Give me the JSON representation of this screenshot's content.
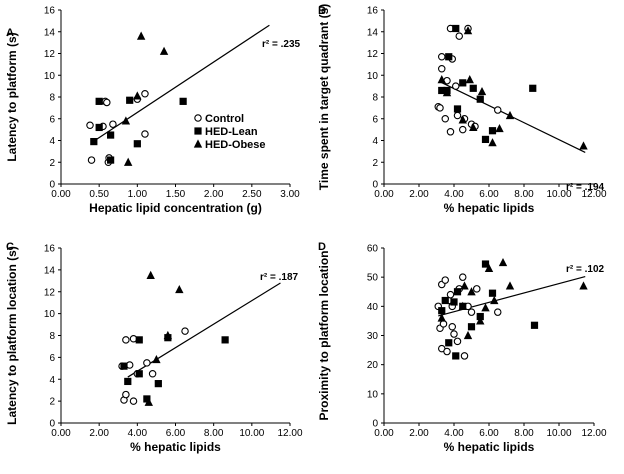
{
  "legend": [
    {
      "label": "Control",
      "marker": "circle"
    },
    {
      "label": "HED-Lean",
      "marker": "square"
    },
    {
      "label": "HED-Obese",
      "marker": "triangle"
    }
  ],
  "chart_data": [
    {
      "panel": "A",
      "type": "scatter",
      "xlabel": "Hepatic lipid concentration (g)",
      "ylabel": "Latency to platform (s)",
      "xlim": [
        0,
        3.0
      ],
      "ylim": [
        0,
        16
      ],
      "xticks": [
        "0.00",
        "0.50",
        "1.00",
        "1.50",
        "2.00",
        "2.50",
        "3.00"
      ],
      "yticks": [
        "0",
        "2",
        "4",
        "6",
        "8",
        "10",
        "12",
        "14",
        "16"
      ],
      "r2_label": "r² = .235",
      "fit": {
        "x": [
          0.4,
          2.73
        ],
        "y": [
          3.8,
          14.6
        ]
      },
      "series": [
        {
          "name": "Control",
          "marker": "circle",
          "points": [
            [
              0.38,
              5.4
            ],
            [
              0.4,
              2.2
            ],
            [
              0.55,
              5.3
            ],
            [
              0.58,
              7.6
            ],
            [
              0.6,
              7.5
            ],
            [
              0.62,
              2.0
            ],
            [
              0.63,
              2.4
            ],
            [
              0.68,
              5.5
            ],
            [
              1.0,
              7.8
            ],
            [
              1.1,
              8.3
            ],
            [
              1.1,
              4.6
            ]
          ]
        },
        {
          "name": "HED-Lean",
          "marker": "square",
          "points": [
            [
              0.43,
              3.9
            ],
            [
              0.5,
              7.6
            ],
            [
              0.5,
              5.2
            ],
            [
              0.65,
              4.5
            ],
            [
              0.65,
              2.2
            ],
            [
              0.9,
              7.7
            ],
            [
              1.0,
              3.7
            ],
            [
              1.6,
              7.6
            ]
          ]
        },
        {
          "name": "HED-Obese",
          "marker": "triangle",
          "points": [
            [
              0.85,
              5.8
            ],
            [
              0.88,
              2.0
            ],
            [
              1.0,
              8.1
            ],
            [
              1.05,
              13.6
            ],
            [
              1.35,
              12.2
            ]
          ]
        }
      ]
    },
    {
      "panel": "B",
      "type": "scatter",
      "xlabel": "% hepatic lipids",
      "ylabel": "Time spent in target quadrant (s)",
      "xlim": [
        0,
        12
      ],
      "ylim": [
        0,
        16
      ],
      "xticks": [
        "0.00",
        "2.00",
        "4.00",
        "6.00",
        "8.00",
        "10.00",
        "12.00"
      ],
      "yticks": [
        "0",
        "2",
        "4",
        "6",
        "8",
        "10",
        "12",
        "14",
        "16"
      ],
      "r2_label": "r² = .194",
      "fit": {
        "x": [
          3.2,
          11.5
        ],
        "y": [
          9.4,
          2.9
        ]
      },
      "series": [
        {
          "name": "Control",
          "marker": "circle",
          "points": [
            [
              3.1,
              7.1
            ],
            [
              3.2,
              7.0
            ],
            [
              3.3,
              10.6
            ],
            [
              3.3,
              11.7
            ],
            [
              3.5,
              6.0
            ],
            [
              3.6,
              9.5
            ],
            [
              3.8,
              14.3
            ],
            [
              3.8,
              4.8
            ],
            [
              3.9,
              11.5
            ],
            [
              4.1,
              9.0
            ],
            [
              4.2,
              6.3
            ],
            [
              4.3,
              13.6
            ],
            [
              4.5,
              5.0
            ],
            [
              4.6,
              6.0
            ],
            [
              4.8,
              14.3
            ],
            [
              5.0,
              5.5
            ],
            [
              5.2,
              5.3
            ],
            [
              6.5,
              6.8
            ]
          ]
        },
        {
          "name": "HED-Lean",
          "marker": "square",
          "points": [
            [
              3.3,
              8.6
            ],
            [
              3.6,
              8.6
            ],
            [
              3.7,
              11.7
            ],
            [
              4.1,
              14.3
            ],
            [
              4.2,
              6.9
            ],
            [
              4.5,
              9.3
            ],
            [
              5.1,
              8.8
            ],
            [
              5.5,
              7.8
            ],
            [
              5.8,
              4.1
            ],
            [
              6.2,
              4.9
            ],
            [
              8.5,
              8.8
            ]
          ]
        },
        {
          "name": "HED-Obese",
          "marker": "triangle",
          "points": [
            [
              3.3,
              9.6
            ],
            [
              3.6,
              8.4
            ],
            [
              4.5,
              5.9
            ],
            [
              4.8,
              14.1
            ],
            [
              4.9,
              9.6
            ],
            [
              5.1,
              5.2
            ],
            [
              5.6,
              8.5
            ],
            [
              6.2,
              3.8
            ],
            [
              6.6,
              5.1
            ],
            [
              7.2,
              6.3
            ],
            [
              11.4,
              3.5
            ]
          ]
        }
      ]
    },
    {
      "panel": "C",
      "type": "scatter",
      "xlabel": "% hepatic lipids",
      "ylabel": "Latency to platform location (s)",
      "xlim": [
        0,
        12
      ],
      "ylim": [
        0,
        16
      ],
      "xticks": [
        "0.00",
        "2.00",
        "4.00",
        "6.00",
        "8.00",
        "10.00",
        "12.00"
      ],
      "yticks": [
        "0",
        "2",
        "4",
        "6",
        "8",
        "10",
        "12",
        "14",
        "16"
      ],
      "r2_label": "r² = .187",
      "fit": {
        "x": [
          3.5,
          11.5
        ],
        "y": [
          4.2,
          12.8
        ]
      },
      "series": [
        {
          "name": "Control",
          "marker": "circle",
          "points": [
            [
              3.2,
              5.2
            ],
            [
              3.3,
              2.1
            ],
            [
              3.4,
              2.6
            ],
            [
              3.4,
              7.6
            ],
            [
              3.6,
              5.3
            ],
            [
              3.8,
              7.7
            ],
            [
              3.8,
              2.0
            ],
            [
              4.0,
              4.5
            ],
            [
              4.5,
              5.5
            ],
            [
              4.8,
              4.5
            ],
            [
              6.5,
              8.4
            ]
          ]
        },
        {
          "name": "HED-Lean",
          "marker": "square",
          "points": [
            [
              3.3,
              5.2
            ],
            [
              3.5,
              3.8
            ],
            [
              4.1,
              4.5
            ],
            [
              4.1,
              7.6
            ],
            [
              4.5,
              2.2
            ],
            [
              5.1,
              3.6
            ],
            [
              5.6,
              7.8
            ],
            [
              8.6,
              7.6
            ]
          ]
        },
        {
          "name": "HED-Obese",
          "marker": "triangle",
          "points": [
            [
              4.6,
              1.9
            ],
            [
              4.7,
              13.5
            ],
            [
              5.0,
              5.8
            ],
            [
              5.6,
              8.0
            ],
            [
              6.2,
              12.2
            ]
          ]
        }
      ]
    },
    {
      "panel": "D",
      "type": "scatter",
      "xlabel": "% hepatic lipids",
      "ylabel": "Proximity to platform location",
      "xlim": [
        0,
        12
      ],
      "ylim": [
        0,
        60
      ],
      "xticks": [
        "0.00",
        "2.00",
        "4.00",
        "6.00",
        "8.00",
        "10.00",
        "12.00"
      ],
      "yticks": [
        "0",
        "10",
        "20",
        "30",
        "40",
        "50",
        "60"
      ],
      "r2_label": "r² = .102",
      "fit": {
        "x": [
          3.1,
          11.5
        ],
        "y": [
          36.7,
          50.2
        ]
      },
      "series": [
        {
          "name": "Control",
          "marker": "circle",
          "points": [
            [
              3.1,
              40.0
            ],
            [
              3.2,
              32.5
            ],
            [
              3.3,
              25.5
            ],
            [
              3.3,
              47.5
            ],
            [
              3.4,
              34.0
            ],
            [
              3.5,
              49.0
            ],
            [
              3.6,
              24.5
            ],
            [
              3.7,
              42.0
            ],
            [
              3.8,
              44.0
            ],
            [
              3.9,
              40.0
            ],
            [
              3.9,
              33.0
            ],
            [
              4.0,
              30.5
            ],
            [
              4.2,
              28.0
            ],
            [
              4.3,
              46.0
            ],
            [
              4.5,
              50.0
            ],
            [
              4.6,
              23.0
            ],
            [
              4.8,
              40.0
            ],
            [
              5.0,
              38.0
            ],
            [
              5.3,
              46.0
            ],
            [
              6.5,
              38.0
            ]
          ]
        },
        {
          "name": "HED-Lean",
          "marker": "square",
          "points": [
            [
              3.3,
              38.5
            ],
            [
              3.5,
              42.0
            ],
            [
              3.7,
              27.5
            ],
            [
              4.0,
              41.5
            ],
            [
              4.1,
              23.0
            ],
            [
              4.2,
              45.0
            ],
            [
              4.5,
              40.0
            ],
            [
              5.0,
              33.0
            ],
            [
              5.5,
              36.5
            ],
            [
              5.8,
              54.5
            ],
            [
              6.2,
              44.5
            ],
            [
              8.6,
              33.5
            ]
          ]
        },
        {
          "name": "HED-Obese",
          "marker": "triangle",
          "points": [
            [
              3.3,
              36.0
            ],
            [
              4.5,
              40.0
            ],
            [
              4.6,
              47.0
            ],
            [
              4.8,
              30.0
            ],
            [
              5.0,
              45.0
            ],
            [
              5.5,
              35.0
            ],
            [
              5.8,
              39.5
            ],
            [
              6.0,
              53.0
            ],
            [
              6.3,
              42.0
            ],
            [
              6.8,
              55.0
            ],
            [
              7.2,
              47.0
            ],
            [
              11.4,
              47.0
            ]
          ]
        }
      ]
    }
  ]
}
